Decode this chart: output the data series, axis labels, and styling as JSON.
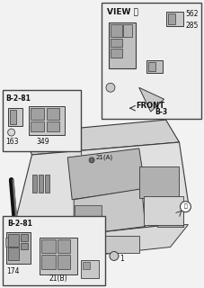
{
  "bg_color": "#f2f2f2",
  "labels": {
    "view_a": "VIEW Ⓐ",
    "b_2_81_top": "B-2-81",
    "b_2_81_bot": "B-2-81",
    "b_3": "B-3",
    "front": "FRONT",
    "num_349": "349",
    "num_163": "163",
    "num_21a": "21(A)",
    "num_562": "562",
    "num_285": "285",
    "num_174": "174",
    "num_21b": "21(B)",
    "circle_a": "Ⓐ",
    "num_1": "1"
  },
  "line_color": "#3a3a3a",
  "text_color": "#111111",
  "dash_face": "#dedede",
  "dash_dark": "#b0b0b0",
  "inset_face": "#eeeeee",
  "inset_border": "#444444",
  "connector_face": "#c8c8c8",
  "connector_dark": "#a0a0a0"
}
